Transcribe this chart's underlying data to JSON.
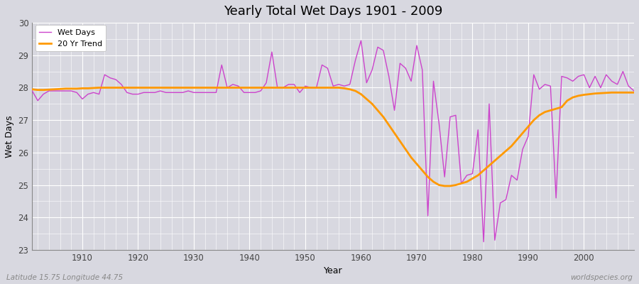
{
  "title": "Yearly Total Wet Days 1901 - 2009",
  "xlabel": "Year",
  "ylabel": "Wet Days",
  "subtitle": "Latitude 15.75 Longitude 44.75",
  "watermark": "worldspecies.org",
  "ylim": [
    23,
    30
  ],
  "yticks": [
    23,
    24,
    25,
    26,
    27,
    28,
    29,
    30
  ],
  "background_color": "#d8d8e0",
  "plot_bg_color": "#d8d8e0",
  "wet_days_color": "#cc44cc",
  "trend_color": "#ff9900",
  "years": [
    1901,
    1902,
    1903,
    1904,
    1905,
    1906,
    1907,
    1908,
    1909,
    1910,
    1911,
    1912,
    1913,
    1914,
    1915,
    1916,
    1917,
    1918,
    1919,
    1920,
    1921,
    1922,
    1923,
    1924,
    1925,
    1926,
    1927,
    1928,
    1929,
    1930,
    1931,
    1932,
    1933,
    1934,
    1935,
    1936,
    1937,
    1938,
    1939,
    1940,
    1941,
    1942,
    1943,
    1944,
    1945,
    1946,
    1947,
    1948,
    1949,
    1950,
    1951,
    1952,
    1953,
    1954,
    1955,
    1956,
    1957,
    1958,
    1959,
    1960,
    1961,
    1962,
    1963,
    1964,
    1965,
    1966,
    1967,
    1968,
    1969,
    1970,
    1971,
    1972,
    1973,
    1974,
    1975,
    1976,
    1977,
    1978,
    1979,
    1980,
    1981,
    1982,
    1983,
    1984,
    1985,
    1986,
    1987,
    1988,
    1989,
    1990,
    1991,
    1992,
    1993,
    1994,
    1995,
    1996,
    1997,
    1998,
    1999,
    2000,
    2001,
    2002,
    2003,
    2004,
    2005,
    2006,
    2007,
    2008,
    2009
  ],
  "wet_days": [
    27.9,
    27.6,
    27.8,
    27.9,
    27.9,
    27.9,
    27.9,
    27.9,
    27.85,
    27.65,
    27.8,
    27.85,
    27.8,
    28.4,
    28.3,
    28.25,
    28.1,
    27.85,
    27.8,
    27.8,
    27.85,
    27.85,
    27.85,
    27.9,
    27.85,
    27.85,
    27.85,
    27.85,
    27.9,
    27.85,
    27.85,
    27.85,
    27.85,
    27.85,
    28.7,
    28.0,
    28.1,
    28.05,
    27.85,
    27.85,
    27.85,
    27.9,
    28.15,
    29.1,
    28.0,
    28.0,
    28.1,
    28.1,
    27.85,
    28.05,
    28.0,
    28.0,
    28.7,
    28.6,
    28.05,
    28.1,
    28.05,
    28.1,
    28.85,
    29.45,
    28.15,
    28.55,
    29.25,
    29.15,
    28.35,
    27.3,
    28.75,
    28.6,
    28.2,
    29.3,
    28.55,
    24.05,
    28.2,
    26.9,
    25.25,
    27.1,
    27.15,
    25.05,
    25.3,
    25.35,
    26.7,
    23.25,
    27.5,
    23.3,
    24.45,
    24.55,
    25.3,
    25.15,
    26.1,
    26.5,
    28.4,
    27.95,
    28.1,
    28.05,
    24.6,
    28.35,
    28.3,
    28.2,
    28.35,
    28.4,
    28.0,
    28.35,
    28.0,
    28.4,
    28.2,
    28.1,
    28.5,
    28.05,
    27.9
  ],
  "trend_years": [
    1901,
    1902,
    1903,
    1904,
    1905,
    1906,
    1907,
    1908,
    1909,
    1910,
    1911,
    1912,
    1913,
    1914,
    1915,
    1916,
    1917,
    1918,
    1919,
    1920,
    1921,
    1922,
    1923,
    1924,
    1925,
    1926,
    1927,
    1928,
    1929,
    1930,
    1931,
    1932,
    1933,
    1934,
    1935,
    1936,
    1937,
    1938,
    1939,
    1940,
    1941,
    1942,
    1943,
    1944,
    1945,
    1946,
    1947,
    1948,
    1949,
    1950,
    1951,
    1952,
    1953,
    1954,
    1955,
    1956,
    1957,
    1958,
    1959,
    1960,
    1961,
    1962,
    1963,
    1964,
    1965,
    1966,
    1967,
    1968,
    1969,
    1970,
    1971,
    1972,
    1973,
    1974,
    1975,
    1976,
    1977,
    1978,
    1979,
    1980,
    1981,
    1982,
    1983,
    1984,
    1985,
    1986,
    1987,
    1988,
    1989,
    1990,
    1991,
    1992,
    1993,
    1994,
    1995,
    1996,
    1997,
    1998,
    1999,
    2000,
    2001,
    2002,
    2003,
    2004,
    2005,
    2006,
    2007,
    2008,
    2009
  ],
  "trend_values": [
    27.95,
    27.93,
    27.93,
    27.94,
    27.95,
    27.96,
    27.97,
    27.97,
    27.97,
    27.98,
    27.98,
    27.99,
    28.0,
    28.0,
    28.0,
    28.0,
    28.0,
    28.0,
    28.0,
    28.0,
    28.0,
    28.0,
    28.0,
    28.0,
    28.0,
    28.0,
    28.0,
    28.0,
    28.0,
    28.0,
    28.0,
    28.0,
    28.0,
    28.0,
    28.0,
    28.0,
    28.0,
    28.0,
    28.0,
    28.0,
    28.0,
    28.0,
    28.0,
    28.0,
    28.0,
    28.0,
    28.0,
    28.0,
    28.0,
    28.0,
    28.0,
    28.0,
    28.0,
    28.0,
    28.0,
    28.0,
    27.98,
    27.95,
    27.9,
    27.8,
    27.65,
    27.5,
    27.3,
    27.1,
    26.85,
    26.6,
    26.35,
    26.1,
    25.85,
    25.65,
    25.45,
    25.25,
    25.1,
    25.0,
    24.97,
    24.97,
    25.0,
    25.05,
    25.1,
    25.2,
    25.3,
    25.45,
    25.6,
    25.75,
    25.9,
    26.05,
    26.2,
    26.4,
    26.6,
    26.8,
    27.0,
    27.15,
    27.25,
    27.3,
    27.35,
    27.4,
    27.6,
    27.7,
    27.75,
    27.78,
    27.8,
    27.82,
    27.83,
    27.84,
    27.85,
    27.85,
    27.85,
    27.85,
    27.85
  ]
}
